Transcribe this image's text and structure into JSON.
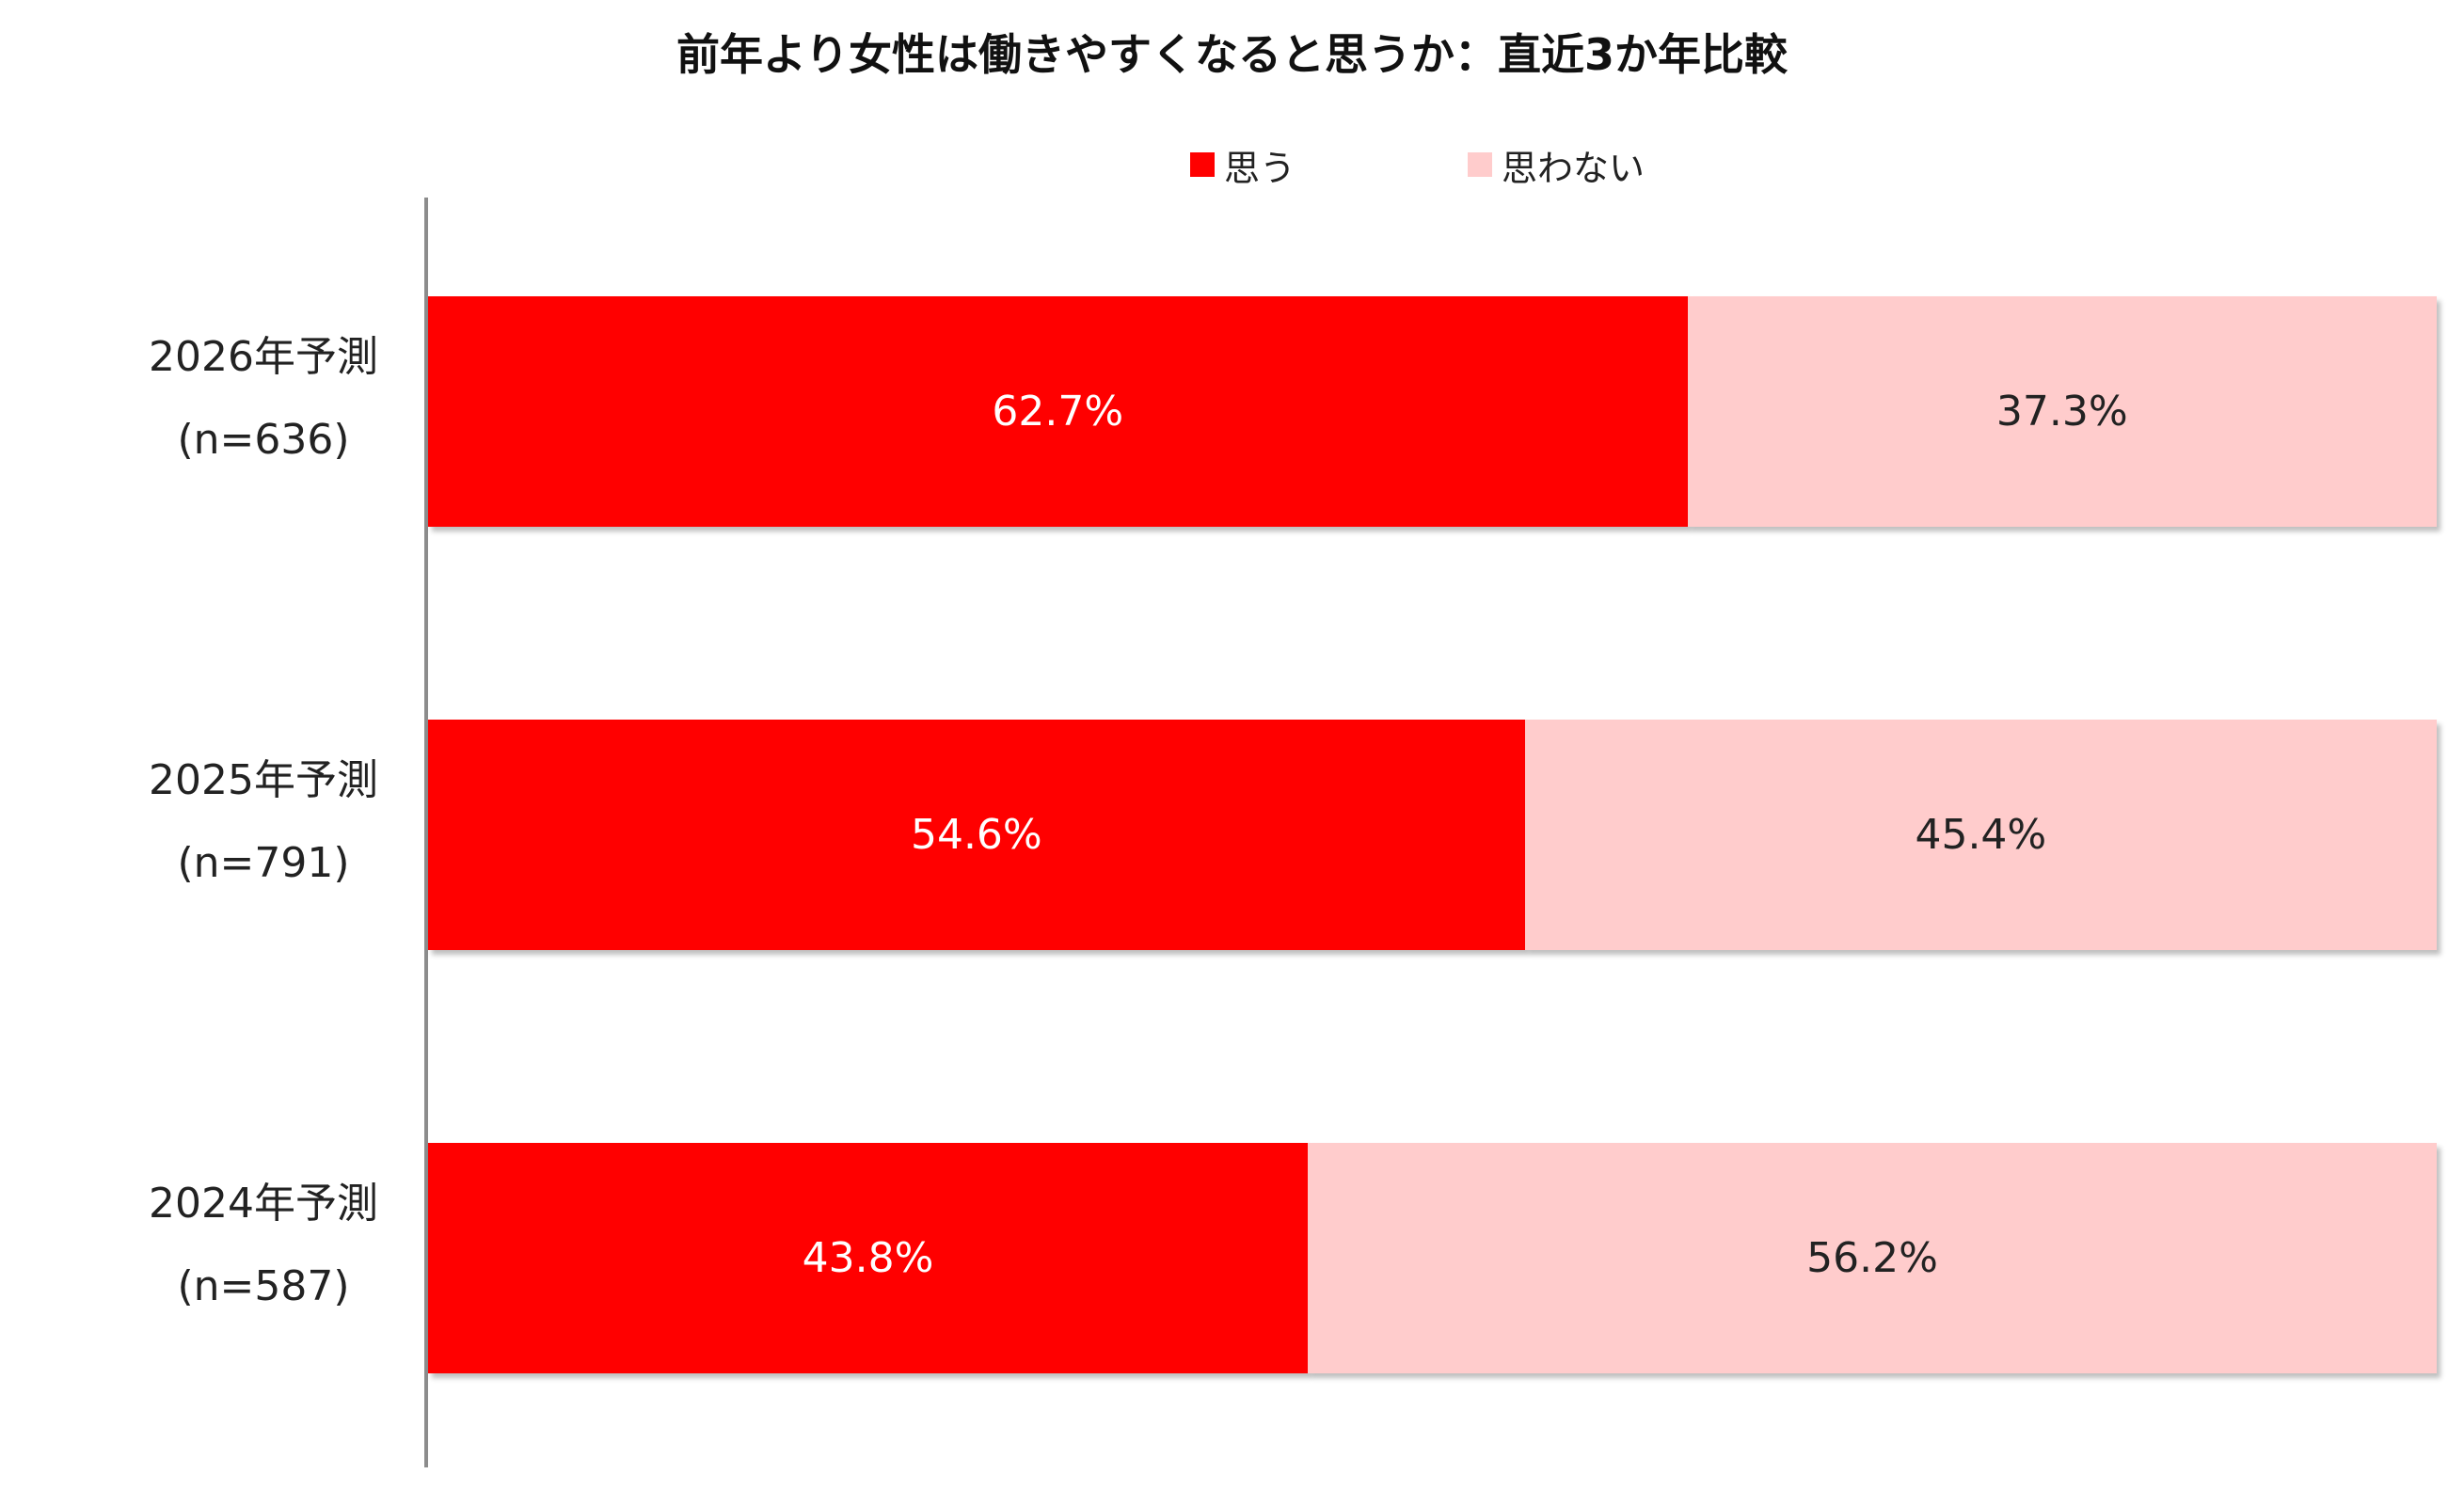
{
  "chart_data": {
    "type": "bar",
    "orientation": "horizontal",
    "stacked": true,
    "title": "前年より女性は働きやすくなると思うか：直近3か年比較",
    "categories": [
      {
        "year": "2026年予測",
        "n": "(n=636)"
      },
      {
        "year": "2025年予測",
        "n": "(n=791)"
      },
      {
        "year": "2024年予測",
        "n": "(n=587)"
      }
    ],
    "series": [
      {
        "name": "思う",
        "color": "#ff0000",
        "label_color": "#ffffff",
        "values": [
          62.7,
          54.6,
          43.8
        ],
        "labels": [
          "62.7%",
          "54.6%",
          "43.8%"
        ]
      },
      {
        "name": "思わない",
        "color": "#ffcccc",
        "label_color": "#222222",
        "values": [
          37.3,
          45.4,
          56.2
        ],
        "labels": [
          "37.3%",
          "45.4%",
          "56.2%"
        ]
      }
    ],
    "xlim": [
      0,
      100
    ],
    "legend_position": "top-center",
    "grid": false
  }
}
